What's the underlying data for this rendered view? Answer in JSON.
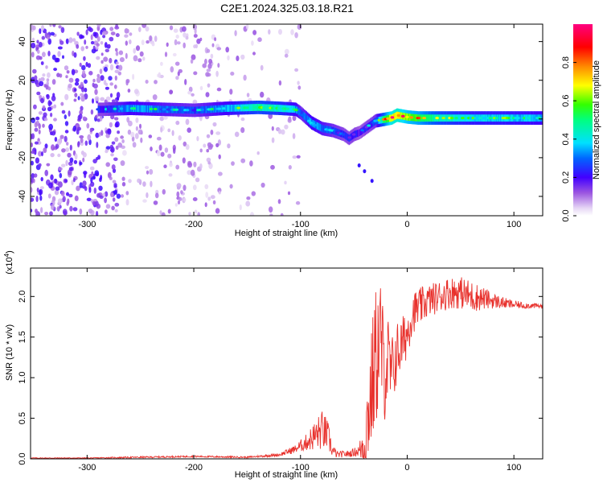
{
  "page": {
    "title": "C2E1.2024.325.03.18.R21"
  },
  "colors": {
    "snr_line": "#e8312c",
    "frame": "#000000",
    "background": "#ffffff"
  },
  "chart_data": [
    {
      "type": "heatmap",
      "title": "C2E1.2024.325.03.18.R21",
      "xlabel": "Height of straight line (km)",
      "ylabel": "Frequency (Hz)",
      "xlim": [
        -353,
        127
      ],
      "ylim": [
        -50,
        49
      ],
      "xticks": [
        -300,
        -200,
        -100,
        0,
        100
      ],
      "xtick_labels": [
        "-300",
        "-200",
        "-100",
        "0",
        "100"
      ],
      "yticks": [
        -40,
        -20,
        0,
        20,
        40
      ],
      "ytick_labels": [
        "-40",
        "-20",
        "0",
        "20",
        "40"
      ],
      "colorbar": {
        "label": "Normalized spectral amplitude",
        "range": [
          0,
          1
        ],
        "ticks": [
          0.0,
          0.2,
          0.4,
          0.6,
          0.8
        ],
        "tick_labels": [
          "0.0",
          "0.2",
          "0.4",
          "0.6",
          "0.8"
        ],
        "colormap": "rainbow (white-lavender, violet, blue, cyan, green, yellow, orange, red, magenta)"
      },
      "ridge": {
        "x": [
          -285,
          -260,
          -230,
          -200,
          -170,
          -140,
          -120,
          -105,
          -100,
          -90,
          -80,
          -70,
          -60,
          -55,
          -50,
          -45,
          -40,
          -35,
          -30,
          -20,
          -15,
          -10,
          -5,
          0,
          10,
          30,
          60,
          90,
          127
        ],
        "frequency": [
          5,
          5.5,
          5,
          4.5,
          5.5,
          6,
          5.5,
          5,
          3,
          -2,
          -5,
          -6,
          -8,
          -10,
          -8,
          -7,
          -5,
          -3,
          -1,
          0,
          0.5,
          2,
          1.5,
          1,
          0.5,
          0.5,
          0.5,
          0.5,
          0.5
        ],
        "amplitude": [
          0.3,
          0.45,
          0.4,
          0.35,
          0.45,
          0.6,
          0.55,
          0.45,
          0.35,
          0.45,
          0.4,
          0.35,
          0.3,
          0.3,
          0.3,
          0.25,
          0.3,
          0.3,
          0.35,
          0.75,
          0.9,
          0.95,
          0.85,
          0.8,
          0.75,
          0.6,
          0.5,
          0.5,
          0.45
        ]
      },
      "noise_region": {
        "x": [
          -353,
          -100
        ],
        "density": "high below -270 km, sparse from -270 to -100 km"
      }
    },
    {
      "type": "line",
      "xlabel": "Height of straight line (km)",
      "ylabel": "SNR (10 * v/v)",
      "y_multiplier": "(x10^4)",
      "xlim": [
        -353,
        127
      ],
      "ylim": [
        0,
        2.35
      ],
      "xticks": [
        -300,
        -200,
        -100,
        0,
        100
      ],
      "xtick_labels": [
        "-300",
        "-200",
        "-100",
        "0",
        "100"
      ],
      "yticks": [
        0.0,
        0.5,
        1.0,
        1.5,
        2.0
      ],
      "ytick_labels": [
        "0.0",
        "0.5",
        "1.0",
        "1.5",
        "2.0"
      ],
      "series": [
        {
          "color": "#e8312c",
          "x": [
            -353,
            -300,
            -250,
            -200,
            -150,
            -120,
            -105,
            -95,
            -85,
            -80,
            -75,
            -70,
            -65,
            -60,
            -55,
            -50,
            -45,
            -40,
            -35,
            -30,
            -25,
            -22,
            -18,
            -15,
            -10,
            -5,
            0,
            5,
            10,
            20,
            30,
            40,
            50,
            60,
            70,
            80,
            90,
            100,
            110,
            127
          ],
          "y": [
            0.01,
            0.01,
            0.02,
            0.03,
            0.02,
            0.05,
            0.12,
            0.2,
            0.3,
            0.35,
            0.3,
            0.1,
            0.05,
            0.06,
            0.06,
            0.08,
            0.1,
            0.2,
            0.7,
            1.2,
            1.5,
            1.1,
            1.2,
            1.0,
            1.3,
            1.4,
            1.55,
            1.8,
            1.85,
            1.95,
            2.0,
            2.05,
            2.05,
            2.0,
            1.98,
            1.95,
            1.92,
            1.9,
            1.89,
            1.88
          ],
          "noise_amplitude": [
            0.005,
            0.005,
            0.01,
            0.01,
            0.01,
            0.02,
            0.05,
            0.1,
            0.2,
            0.25,
            0.2,
            0.08,
            0.04,
            0.04,
            0.04,
            0.05,
            0.08,
            0.4,
            0.7,
            0.9,
            0.8,
            0.7,
            0.6,
            0.5,
            0.4,
            0.35,
            0.3,
            0.25,
            0.25,
            0.2,
            0.2,
            0.2,
            0.2,
            0.2,
            0.15,
            0.1,
            0.07,
            0.05,
            0.04,
            0.03
          ]
        }
      ]
    }
  ]
}
